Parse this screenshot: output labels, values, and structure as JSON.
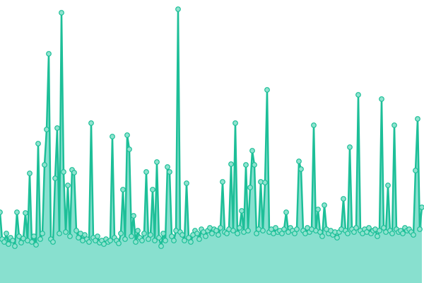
{
  "chart_data": {
    "type": "area",
    "title": "",
    "xlabel": "",
    "ylabel": "",
    "ylim": [
      0,
      400
    ],
    "grid": false,
    "legend": "none",
    "markers": true,
    "colors": {
      "line": "#1dbf98",
      "fill": "#88e0cf",
      "marker_fill": "#8fe3cf",
      "marker_stroke": "#1dbf98"
    },
    "values": [
      100,
      62,
      58,
      70,
      55,
      64,
      60,
      52,
      100,
      66,
      57,
      63,
      99,
      60,
      155,
      58,
      66,
      54,
      197,
      62,
      70,
      167,
      217,
      324,
      62,
      58,
      148,
      219,
      70,
      382,
      157,
      72,
      138,
      66,
      160,
      156,
      74,
      64,
      70,
      60,
      68,
      62,
      58,
      226,
      64,
      60,
      66,
      57,
      60,
      55,
      62,
      58,
      60,
      207,
      64,
      60,
      56,
      70,
      132,
      62,
      209,
      189,
      66,
      95,
      58,
      74,
      64,
      60,
      70,
      157,
      62,
      68,
      132,
      60,
      171,
      64,
      52,
      70,
      60,
      164,
      157,
      66,
      60,
      74,
      387,
      72,
      68,
      60,
      141,
      64,
      58,
      68,
      74,
      70,
      62,
      76,
      72,
      66,
      74,
      78,
      70,
      76,
      74,
      68,
      78,
      143,
      72,
      70,
      76,
      168,
      74,
      226,
      70,
      78,
      102,
      72,
      167,
      74,
      135,
      187,
      167,
      70,
      76,
      143,
      74,
      142,
      273,
      72,
      76,
      70,
      78,
      72,
      74,
      70,
      76,
      100,
      72,
      78,
      74,
      70,
      76,
      172,
      161,
      74,
      70,
      78,
      72,
      76,
      223,
      74,
      104,
      72,
      66,
      110,
      76,
      70,
      74,
      68,
      72,
      64,
      72,
      76,
      119,
      74,
      70,
      192,
      76,
      72,
      78,
      266,
      74,
      70,
      76,
      72,
      78,
      70,
      74,
      76,
      66,
      74,
      260,
      78,
      72,
      138,
      74,
      70,
      223,
      76,
      72,
      74,
      70,
      78,
      74,
      76,
      72,
      68,
      159,
      232,
      76,
      107
    ]
  }
}
